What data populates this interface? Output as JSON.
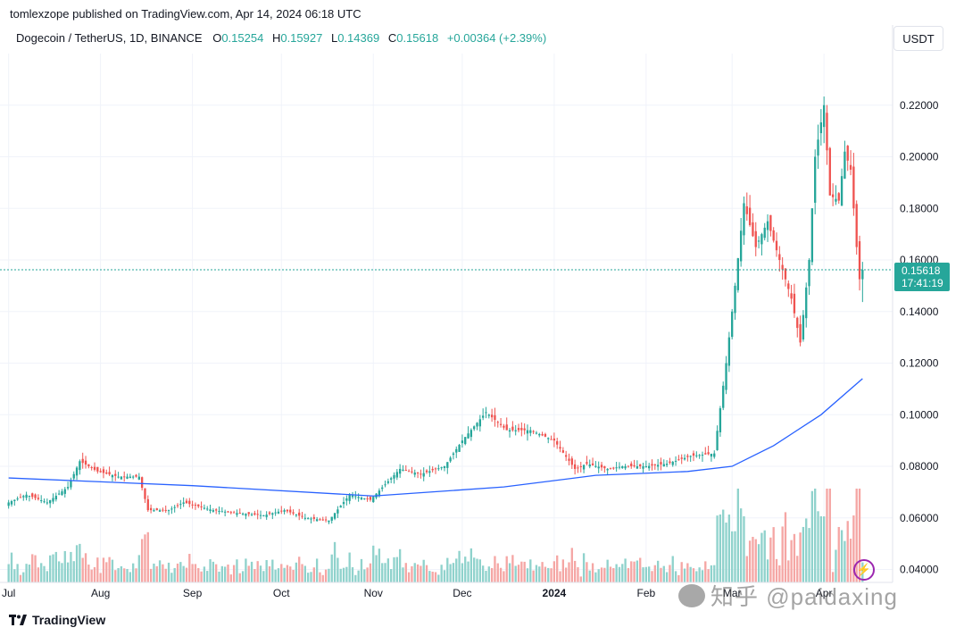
{
  "header": {
    "publisher_line": "tomlexzope published on TradingView.com, Apr 14, 2024 06:18 UTC"
  },
  "legend": {
    "symbol": "Dogecoin / TetherUS, 1D, BINANCE",
    "o_label": "O",
    "o_value": "0.15254",
    "h_label": "H",
    "h_value": "0.15927",
    "l_label": "L",
    "l_value": "0.14369",
    "c_label": "C",
    "c_value": "0.15618",
    "change": "+0.00364 (+2.39%)"
  },
  "currency_button": "USDT",
  "price_tag": {
    "price": "0.15618",
    "countdown": "17:41:19"
  },
  "footer": {
    "brand": "TradingView"
  },
  "watermark": {
    "text": "知乎 @paidaxing"
  },
  "colors": {
    "up": "#26a69a",
    "down": "#ef5350",
    "ma": "#2962ff",
    "tag": "#26a69a",
    "up_vol": "#8fd2cc",
    "down_vol": "#f5a6a4",
    "grid": "#f0f3fa",
    "bolt": "#9c27b0"
  },
  "icons": {
    "bolt": "lightning-bolt-icon"
  },
  "chart_data": {
    "type": "candlestick",
    "symbol": "DOGE/USDT",
    "interval": "1D",
    "ylim": [
      0.035,
      0.24
    ],
    "y_ticks": [
      "0.04000",
      "0.06000",
      "0.08000",
      "0.10000",
      "0.12000",
      "0.14000",
      "0.16000",
      "0.18000",
      "0.20000",
      "0.22000"
    ],
    "x_ticks": [
      "Jul",
      "Aug",
      "Sep",
      "Oct",
      "Nov",
      "Dec",
      "2024",
      "Feb",
      "Mar",
      "Apr"
    ],
    "last_price": 0.15618,
    "price_series": [
      {
        "date": "2023-07-01",
        "close": 0.066
      },
      {
        "date": "2023-07-07",
        "close": 0.069
      },
      {
        "date": "2023-07-14",
        "close": 0.066
      },
      {
        "date": "2023-07-21",
        "close": 0.072
      },
      {
        "date": "2023-07-25",
        "close": 0.082
      },
      {
        "date": "2023-07-31",
        "close": 0.078
      },
      {
        "date": "2023-08-07",
        "close": 0.076
      },
      {
        "date": "2023-08-14",
        "close": 0.076
      },
      {
        "date": "2023-08-17",
        "close": 0.063
      },
      {
        "date": "2023-08-24",
        "close": 0.063
      },
      {
        "date": "2023-08-29",
        "close": 0.066
      },
      {
        "date": "2023-09-08",
        "close": 0.063
      },
      {
        "date": "2023-09-15",
        "close": 0.062
      },
      {
        "date": "2023-09-25",
        "close": 0.061
      },
      {
        "date": "2023-10-02",
        "close": 0.063
      },
      {
        "date": "2023-10-09",
        "close": 0.06
      },
      {
        "date": "2023-10-17",
        "close": 0.059
      },
      {
        "date": "2023-10-24",
        "close": 0.069
      },
      {
        "date": "2023-10-31",
        "close": 0.067
      },
      {
        "date": "2023-11-10",
        "close": 0.079
      },
      {
        "date": "2023-11-17",
        "close": 0.077
      },
      {
        "date": "2023-11-25",
        "close": 0.08
      },
      {
        "date": "2023-12-01",
        "close": 0.09
      },
      {
        "date": "2023-12-09",
        "close": 0.101
      },
      {
        "date": "2023-12-16",
        "close": 0.094
      },
      {
        "date": "2023-12-24",
        "close": 0.094
      },
      {
        "date": "2024-01-01",
        "close": 0.09
      },
      {
        "date": "2024-01-08",
        "close": 0.079
      },
      {
        "date": "2024-01-12",
        "close": 0.081
      },
      {
        "date": "2024-01-19",
        "close": 0.079
      },
      {
        "date": "2024-01-24",
        "close": 0.08
      },
      {
        "date": "2024-02-01",
        "close": 0.08
      },
      {
        "date": "2024-02-08",
        "close": 0.081
      },
      {
        "date": "2024-02-16",
        "close": 0.084
      },
      {
        "date": "2024-02-24",
        "close": 0.085
      },
      {
        "date": "2024-02-28",
        "close": 0.12
      },
      {
        "date": "2024-03-02",
        "close": 0.15
      },
      {
        "date": "2024-03-05",
        "close": 0.182
      },
      {
        "date": "2024-03-09",
        "close": 0.165
      },
      {
        "date": "2024-03-13",
        "close": 0.175
      },
      {
        "date": "2024-03-17",
        "close": 0.16
      },
      {
        "date": "2024-03-21",
        "close": 0.145
      },
      {
        "date": "2024-03-24",
        "close": 0.128
      },
      {
        "date": "2024-03-27",
        "close": 0.16
      },
      {
        "date": "2024-03-29",
        "close": 0.2
      },
      {
        "date": "2024-04-01",
        "close": 0.22
      },
      {
        "date": "2024-04-03",
        "close": 0.185
      },
      {
        "date": "2024-04-06",
        "close": 0.183
      },
      {
        "date": "2024-04-08",
        "close": 0.202
      },
      {
        "date": "2024-04-10",
        "close": 0.195
      },
      {
        "date": "2024-04-12",
        "close": 0.165
      },
      {
        "date": "2024-04-13",
        "close": 0.15254
      },
      {
        "date": "2024-04-14",
        "close": 0.15618
      }
    ],
    "ma_series": [
      {
        "date": "2023-07-01",
        "value": 0.0755
      },
      {
        "date": "2023-09-01",
        "value": 0.0725
      },
      {
        "date": "2023-11-01",
        "value": 0.0685
      },
      {
        "date": "2023-12-15",
        "value": 0.072
      },
      {
        "date": "2024-01-15",
        "value": 0.0765
      },
      {
        "date": "2024-02-15",
        "value": 0.078
      },
      {
        "date": "2024-03-01",
        "value": 0.08
      },
      {
        "date": "2024-03-15",
        "value": 0.088
      },
      {
        "date": "2024-03-31",
        "value": 0.1
      },
      {
        "date": "2024-04-14",
        "value": 0.114
      }
    ]
  }
}
